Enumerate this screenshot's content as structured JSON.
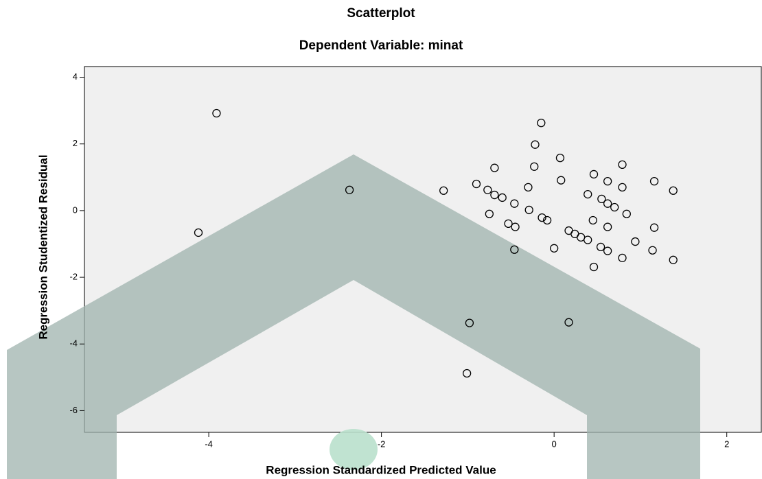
{
  "chart_data": {
    "type": "scatter",
    "title": "Scatterplot",
    "subtitle": "Dependent Variable: minat",
    "x_label": "Regression Standardized Predicted Value",
    "y_label": "Regression Studentized Residual",
    "x": [
      -3.91,
      -2.37,
      -4.12,
      -1.28,
      -0.9,
      -0.77,
      -0.69,
      -0.69,
      -0.6,
      -0.75,
      -0.53,
      -0.45,
      -0.46,
      -0.46,
      -0.15,
      -0.22,
      -0.23,
      -0.3,
      -0.29,
      -0.08,
      -0.14,
      0.07,
      0.08,
      0.0,
      0.17,
      0.24,
      0.31,
      0.39,
      0.46,
      0.39,
      0.45,
      0.46,
      0.55,
      0.62,
      0.62,
      0.54,
      0.62,
      0.62,
      0.7,
      0.79,
      0.79,
      0.79,
      0.84,
      0.94,
      1.14,
      1.16,
      1.16,
      1.38,
      1.38,
      -0.98,
      0.17,
      -1.01
    ],
    "values": [
      2.92,
      0.62,
      -0.66,
      0.6,
      0.8,
      0.62,
      1.28,
      0.47,
      0.39,
      -0.1,
      -0.39,
      -0.49,
      0.21,
      -1.17,
      2.63,
      1.98,
      1.32,
      0.7,
      0.02,
      -0.29,
      -0.21,
      1.58,
      0.91,
      -1.13,
      -0.6,
      -0.7,
      -0.8,
      -0.88,
      1.09,
      0.49,
      -0.29,
      -1.69,
      0.35,
      0.88,
      -0.49,
      -1.09,
      -1.21,
      0.21,
      0.1,
      1.38,
      0.7,
      -1.42,
      -0.1,
      -0.93,
      -1.19,
      0.88,
      -0.51,
      -1.48,
      0.6,
      -3.37,
      -3.35,
      -4.88
    ],
    "color": "#000000",
    "xlim": [
      -5.44,
      2.4
    ],
    "ylim": [
      -6.65,
      4.32
    ],
    "xticks": [
      -4,
      -2,
      0,
      2
    ],
    "yticks": [
      -6,
      -4,
      -2,
      0,
      2,
      4
    ]
  }
}
